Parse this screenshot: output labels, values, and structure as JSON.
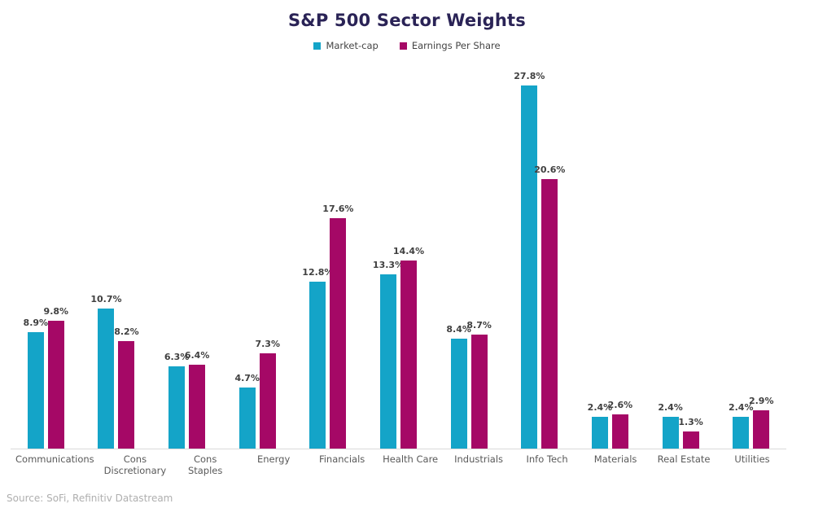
{
  "page": {
    "source_note": "Source: SoFi, Refinitiv Datastream"
  },
  "chart_data": {
    "type": "bar",
    "title": "S&P 500 Sector Weights",
    "xlabel": "",
    "ylabel": "",
    "ylim": [
      0,
      29.4
    ],
    "grid": false,
    "legend_position": "top",
    "axis_line_color": "#D9D9D9",
    "title_color": "#2A2356",
    "value_label_color": "#404040",
    "categories": [
      "Communications",
      "Cons Discretionary",
      "Cons Staples",
      "Energy",
      "Financials",
      "Health Care",
      "Industrials",
      "Info Tech",
      "Materials",
      "Real Estate",
      "Utilities"
    ],
    "series": [
      {
        "name": "Market-cap",
        "color": "#14A4C8",
        "values": [
          8.9,
          10.7,
          6.3,
          4.7,
          12.8,
          13.3,
          8.4,
          27.8,
          2.4,
          2.4,
          2.4
        ],
        "labels": [
          "8.9%",
          "10.7%",
          "6.3%",
          "4.7%",
          "12.8%",
          "13.3%",
          "8.4%",
          "27.8%",
          "2.4%",
          "2.4%",
          "2.4%"
        ]
      },
      {
        "name": "Earnings Per Share",
        "color": "#A50866",
        "values": [
          9.8,
          8.2,
          6.4,
          7.3,
          17.6,
          14.4,
          8.7,
          20.6,
          2.6,
          1.3,
          2.9
        ],
        "labels": [
          "9.8%",
          "8.2%",
          "6.4%",
          "7.3%",
          "17.6%",
          "14.4%",
          "8.7%",
          "20.6%",
          "2.6%",
          "1.3%",
          "2.9%"
        ]
      }
    ]
  }
}
